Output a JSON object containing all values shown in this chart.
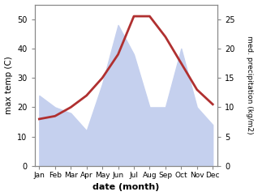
{
  "months": [
    "Jan",
    "Feb",
    "Mar",
    "Apr",
    "May",
    "Jun",
    "Jul",
    "Aug",
    "Sep",
    "Oct",
    "Nov",
    "Dec"
  ],
  "temperature": [
    16,
    17,
    20,
    24,
    30,
    38,
    51,
    51,
    44,
    35,
    26,
    21
  ],
  "precipitation": [
    12,
    10,
    9,
    6,
    14,
    24,
    19,
    10,
    10,
    20,
    10,
    7
  ],
  "temp_color": "#b03030",
  "precip_color": "#c5d0ee",
  "temp_ylim": [
    0,
    55
  ],
  "precip_ylim": [
    0,
    27.5
  ],
  "ylabel_left": "max temp (C)",
  "ylabel_right": "med. precipitation (kg/m2)",
  "xlabel": "date (month)",
  "left_yticks": [
    0,
    10,
    20,
    30,
    40,
    50
  ],
  "right_yticks": [
    0,
    5,
    10,
    15,
    20,
    25
  ],
  "figsize": [
    3.18,
    2.42
  ],
  "dpi": 100
}
